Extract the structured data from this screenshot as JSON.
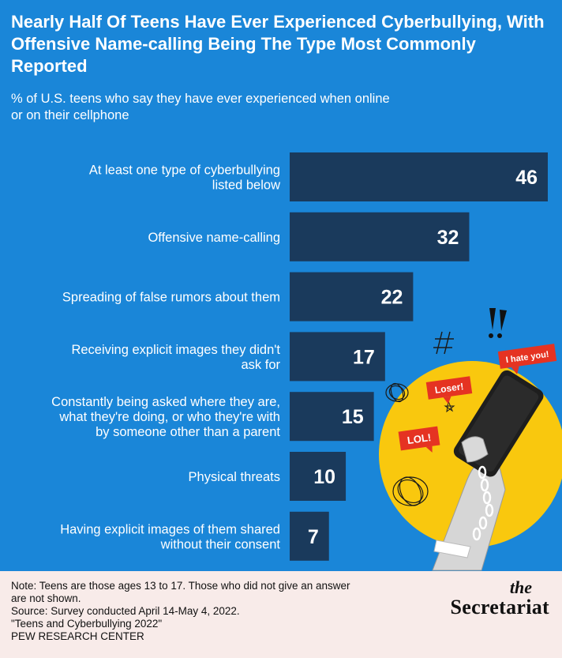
{
  "title": "Nearly Half Of Teens Have Ever Experienced Cyberbullying, With Offensive Name-calling Being The Type Most Commonly Reported",
  "subtitle": "% of U.S. teens who say they have ever experienced when online or on their cellphone",
  "colors": {
    "background": "#1a86d8",
    "bar": "#1a3a5c",
    "bar_text": "#ffffff",
    "footer_bg": "#f8ebe9",
    "circle": "#f9c80e",
    "bubble": "#e53322"
  },
  "chart_data": {
    "type": "bar",
    "orientation": "horizontal",
    "categories": [
      [
        "At least one type of cyberbullying",
        "listed below"
      ],
      [
        "Offensive name-calling"
      ],
      [
        "Spreading of false rumors about them"
      ],
      [
        "Receiving explicit images they didn't",
        "ask for"
      ],
      [
        "Constantly being asked where they are,",
        "what they're doing, or who they're with",
        "by someone other than a parent"
      ],
      [
        "Physical threats"
      ],
      [
        "Having explicit images of them shared",
        "without their consent"
      ]
    ],
    "values": [
      46,
      32,
      22,
      17,
      15,
      10,
      7
    ],
    "xlim": [
      0,
      46
    ],
    "grid": false,
    "legend": false
  },
  "illustration": {
    "bubbles": [
      "I hate you!",
      "Loser!",
      "LOL!"
    ],
    "symbols": [
      "!!",
      "#"
    ]
  },
  "footer": {
    "note": "Note: Teens are those ages 13 to 17. Those who did not give an answer\nare not shown.",
    "source": "Source: Survey conducted April 14-May 4, 2022.",
    "report": "\"Teens and Cyberbullying 2022\"",
    "org": "PEW RESEARCH CENTER"
  },
  "brand": {
    "prefix": "the",
    "name": "Secretariat"
  }
}
